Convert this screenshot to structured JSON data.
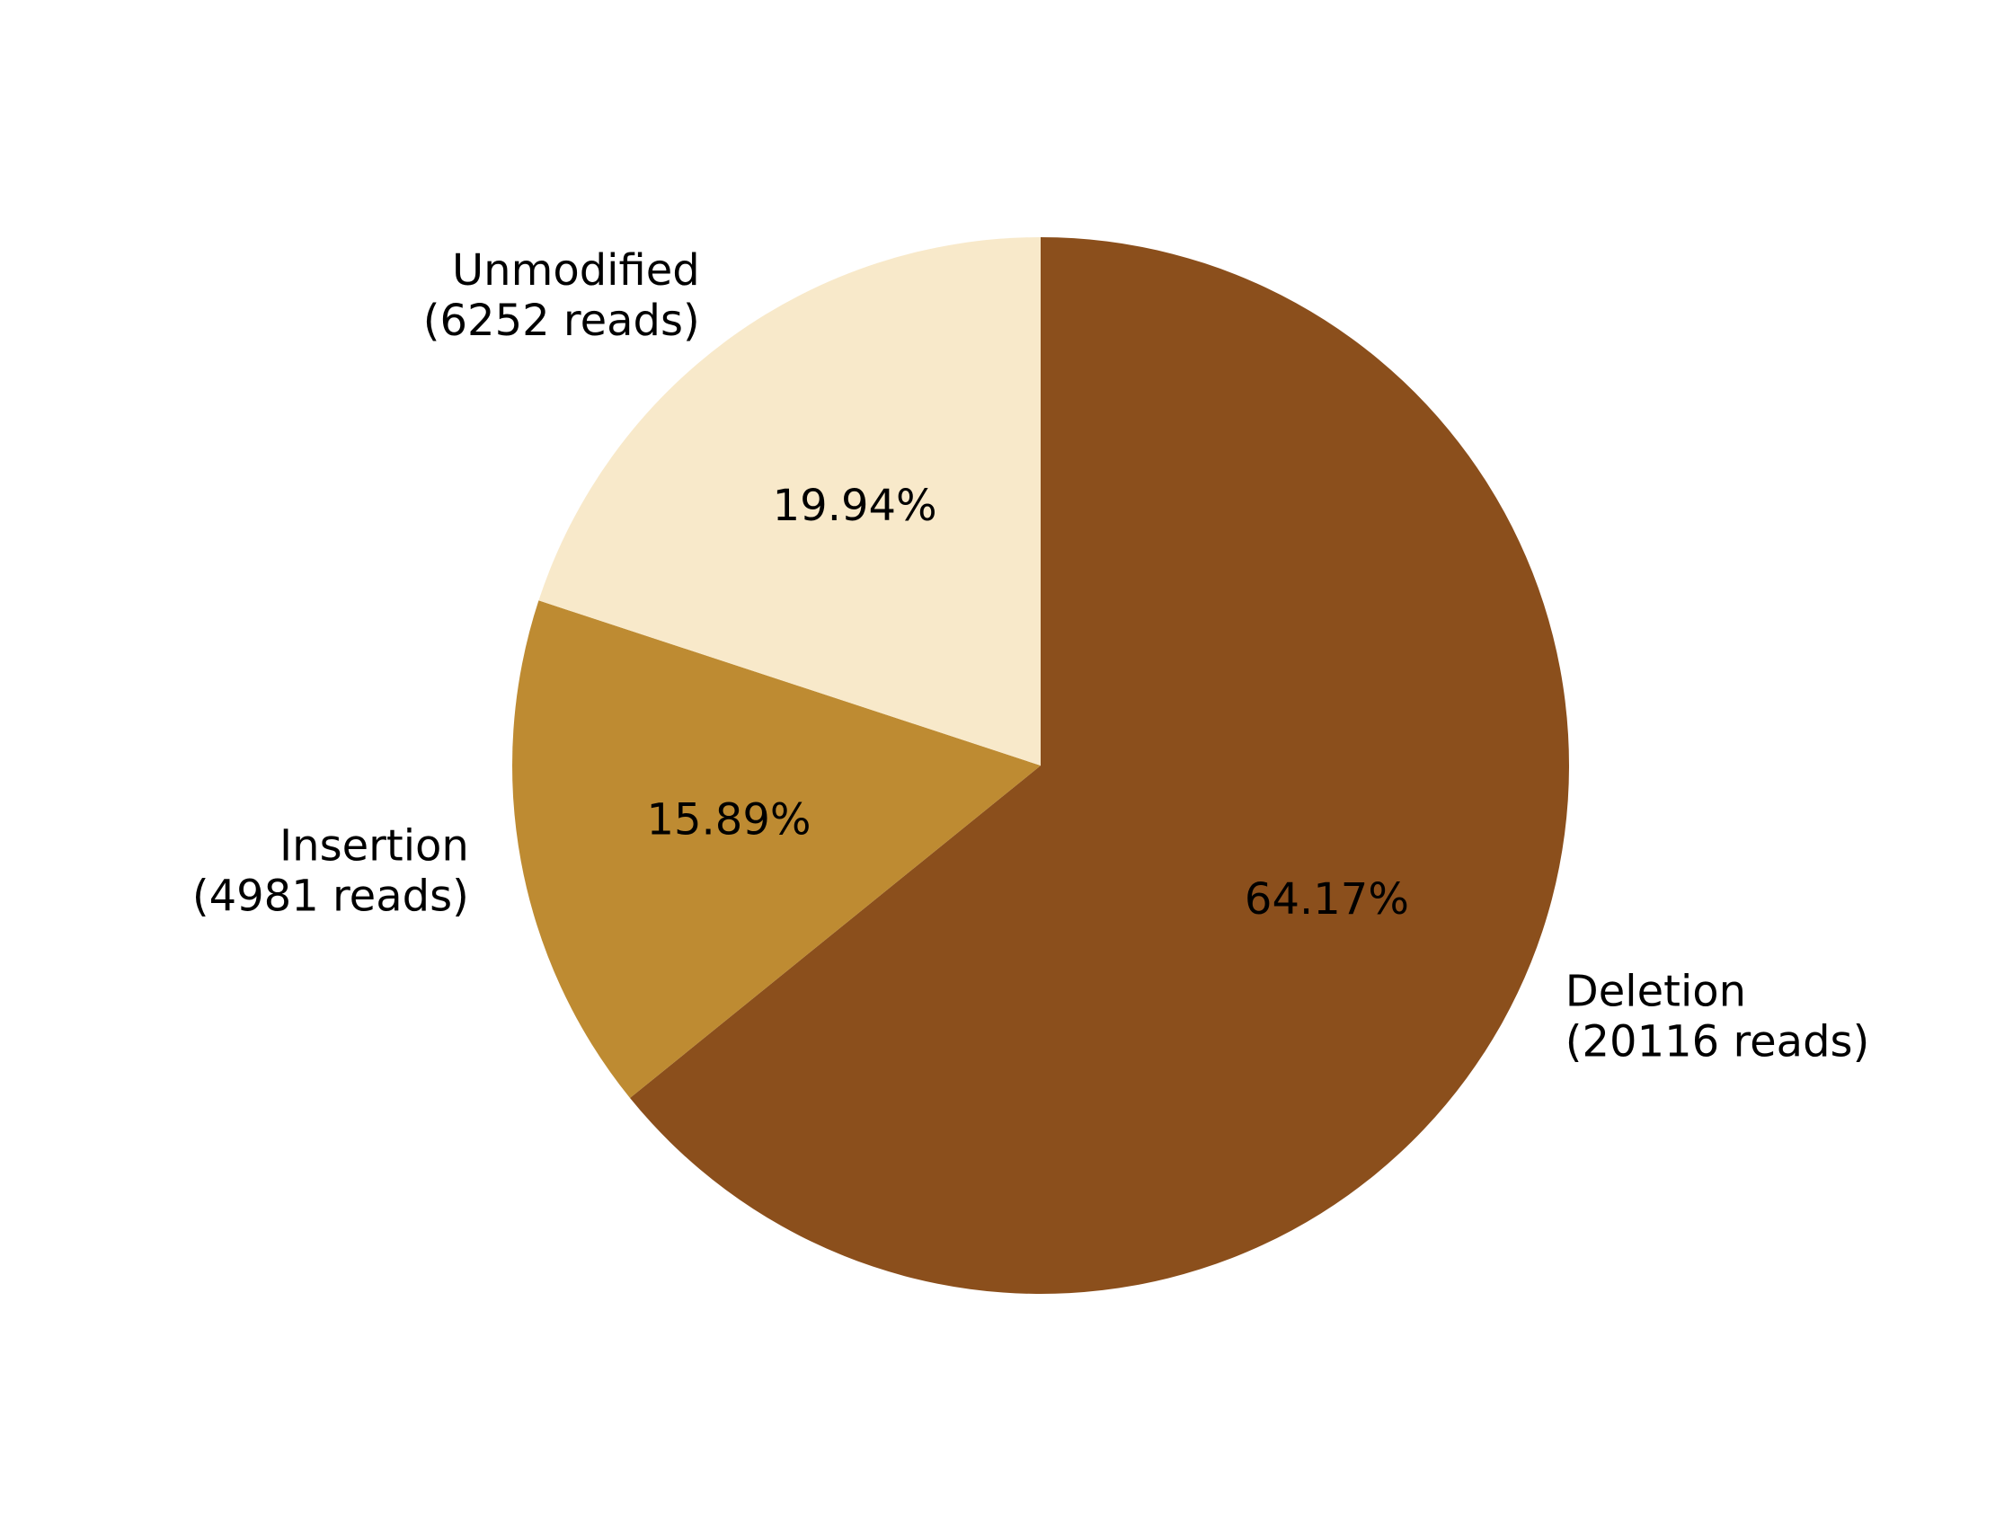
{
  "chart_data": {
    "type": "pie",
    "title": "",
    "start": "top",
    "direction": "clockwise",
    "slices": [
      {
        "category": "Deletion",
        "reads_text": "(20116 reads)",
        "reads": 20116,
        "percent": 64.17,
        "percent_text": "64.17%",
        "color": "#8B4F1C"
      },
      {
        "category": "Insertion",
        "reads_text": "(4981 reads)",
        "reads": 4981,
        "percent": 15.89,
        "percent_text": "15.89%",
        "color": "#BE8B32"
      },
      {
        "category": "Unmodified",
        "reads_text": "(6252 reads)",
        "reads": 6252,
        "percent": 19.94,
        "percent_text": "19.94%",
        "color": "#F8E9CA"
      }
    ]
  }
}
